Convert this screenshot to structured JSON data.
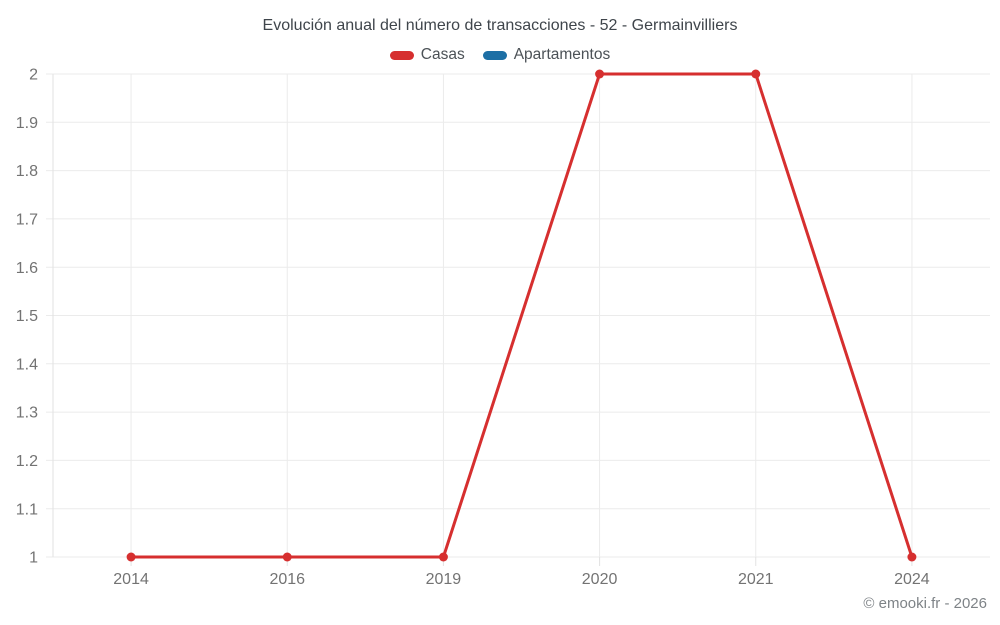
{
  "header": {
    "title": "Evolución anual del número de transacciones - 52 - Germainvilliers"
  },
  "chart_data": {
    "type": "line",
    "title": "Evolución anual del número de transacciones - 52 - Germainvilliers",
    "categories": [
      "2014",
      "2016",
      "2019",
      "2020",
      "2021",
      "2024"
    ],
    "series": [
      {
        "name": "Casas",
        "color": "#d62f2f",
        "values": [
          1,
          1,
          1,
          2,
          2,
          1
        ]
      },
      {
        "name": "Apartamentos",
        "color": "#1d6fa5",
        "values": []
      }
    ],
    "xlabel": "",
    "ylabel": "",
    "ylim": [
      1,
      2
    ],
    "yticks": [
      {
        "value": 2,
        "label": "2"
      },
      {
        "value": 1.9,
        "label": "1.9"
      },
      {
        "value": 1.8,
        "label": "1.8"
      },
      {
        "value": 1.7,
        "label": "1.7"
      },
      {
        "value": 1.6,
        "label": "1.6"
      },
      {
        "value": 1.5,
        "label": "1.5"
      },
      {
        "value": 1.4,
        "label": "1.4"
      },
      {
        "value": 1.3,
        "label": "1.3"
      },
      {
        "value": 1.2,
        "label": "1.2"
      },
      {
        "value": 1.1,
        "label": "1.1"
      },
      {
        "value": 1,
        "label": "1"
      }
    ],
    "grid": true,
    "legend_position": "top"
  },
  "footer": {
    "copyright": "© emooki.fr - 2026"
  },
  "colors": {
    "grid": "#ebebeb",
    "axis": "#e2e2e2",
    "axis_label": "#737373",
    "title": "#3f454b",
    "legend_text": "#4c5257",
    "copyright": "#7e8387"
  }
}
